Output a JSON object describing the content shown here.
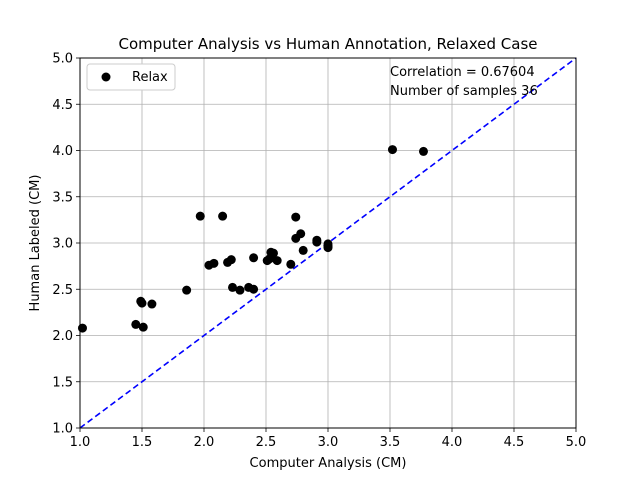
{
  "chart_data": {
    "type": "scatter",
    "title": "Computer Analysis vs Human Annotation, Relaxed Case",
    "xlabel": "Computer Analysis (CM)",
    "ylabel": "Human Labeled (CM)",
    "xlim": [
      1.0,
      5.0
    ],
    "ylim": [
      1.0,
      5.0
    ],
    "xticks": [
      "1.0",
      "1.5",
      "2.0",
      "2.5",
      "3.0",
      "3.5",
      "4.0",
      "4.5",
      "5.0"
    ],
    "yticks": [
      "1.0",
      "1.5",
      "2.0",
      "2.5",
      "3.0",
      "3.5",
      "4.0",
      "4.5",
      "5.0"
    ],
    "grid": true,
    "legend_position": "top-left",
    "annotations": [
      "Correlation = 0.67604",
      "Number of samples 36"
    ],
    "series": [
      {
        "name": "Relax",
        "color": "#000000",
        "marker": "circle",
        "points": [
          [
            1.02,
            2.08
          ],
          [
            1.45,
            2.12
          ],
          [
            1.49,
            2.37
          ],
          [
            1.5,
            2.35
          ],
          [
            1.51,
            2.09
          ],
          [
            1.58,
            2.34
          ],
          [
            1.86,
            2.49
          ],
          [
            1.97,
            3.29
          ],
          [
            2.04,
            2.76
          ],
          [
            2.08,
            2.78
          ],
          [
            2.15,
            3.29
          ],
          [
            2.19,
            2.79
          ],
          [
            2.22,
            2.82
          ],
          [
            2.23,
            2.52
          ],
          [
            2.29,
            2.49
          ],
          [
            2.36,
            2.52
          ],
          [
            2.4,
            2.5
          ],
          [
            2.4,
            2.84
          ],
          [
            2.51,
            2.81
          ],
          [
            2.53,
            2.83
          ],
          [
            2.54,
            2.9
          ],
          [
            2.56,
            2.89
          ],
          [
            2.59,
            2.81
          ],
          [
            2.7,
            2.77
          ],
          [
            2.74,
            3.28
          ],
          [
            2.74,
            3.05
          ],
          [
            2.78,
            3.1
          ],
          [
            2.8,
            2.92
          ],
          [
            2.91,
            3.03
          ],
          [
            2.91,
            3.01
          ],
          [
            3.0,
            2.96
          ],
          [
            3.0,
            2.99
          ],
          [
            3.0,
            2.97
          ],
          [
            3.0,
            2.95
          ],
          [
            3.52,
            4.01
          ],
          [
            3.77,
            3.99
          ]
        ]
      }
    ],
    "reference_line": {
      "color": "#0000ff",
      "style": "dashed",
      "from": [
        1.0,
        1.0
      ],
      "to": [
        5.0,
        5.0
      ]
    }
  }
}
